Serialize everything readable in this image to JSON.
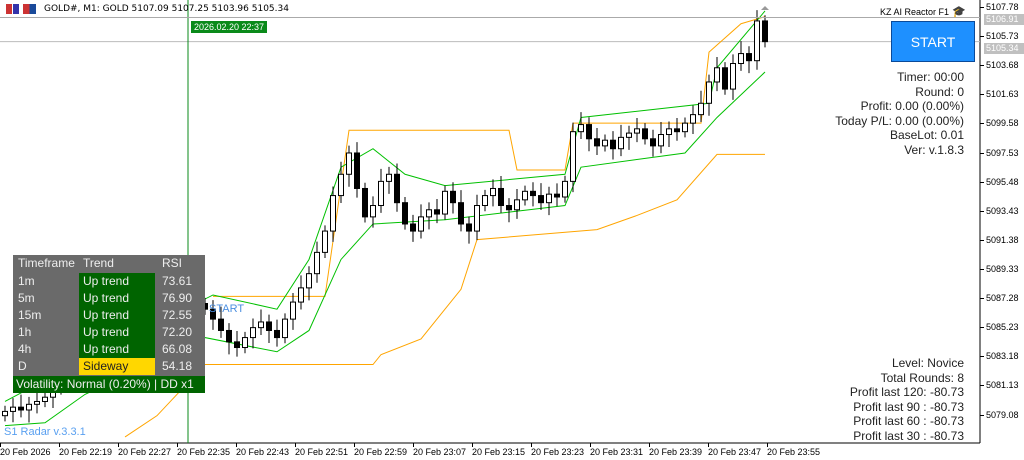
{
  "header": {
    "symbol_info": "GOLD#, M1:  GOLD  5107.09 5107.25 5103.96 5105.34"
  },
  "ea": {
    "name": "KZ AI Reactor F1",
    "icon": "graduation-cap-icon",
    "start_label": "START",
    "stats": [
      "Timer: 00:00",
      "Round: 0",
      "Profit: 0.00 (0.00%)",
      "Today P/L: 0.00 (0.00%)",
      "BaseLot: 0.01",
      "Ver: v.1.8.3"
    ],
    "summary": [
      "Level: Novice",
      "Total Rounds: 8",
      "Profit last 120: -80.73",
      "Profit last 90 : -80.73",
      "Profit last 60 : -80.73",
      "Profit last 30 : -80.73"
    ]
  },
  "radar": {
    "headers": [
      "Timeframe",
      "Trend",
      "RSI"
    ],
    "rows": [
      {
        "tf": "1m",
        "trend": "Up trend",
        "rsi": "73.61",
        "color": "#006400"
      },
      {
        "tf": "5m",
        "trend": "Up trend",
        "rsi": "76.90",
        "color": "#006400"
      },
      {
        "tf": "15m",
        "trend": "Up trend",
        "rsi": "72.55",
        "color": "#006400"
      },
      {
        "tf": "1h",
        "trend": "Up trend",
        "rsi": "72.20",
        "color": "#006400"
      },
      {
        "tf": "4h",
        "trend": "Up trend",
        "rsi": "66.08",
        "color": "#006400"
      },
      {
        "tf": "D",
        "trend": "Sideway",
        "rsi": "54.18",
        "color": "#ffd700"
      }
    ],
    "footer": "Volatility: Normal (0.20%) | DD x1",
    "ghost_label": "START",
    "version": "S1 Radar v.3.3.1"
  },
  "price_axis": {
    "labels": [
      "5107.78",
      "5105.73",
      "5103.68",
      "5101.63",
      "5099.58",
      "5097.53",
      "5095.48",
      "5093.43",
      "5091.38",
      "5089.33",
      "5087.28",
      "5085.23",
      "5083.18",
      "5081.13",
      "5079.08"
    ],
    "ask": "5106.91",
    "bid": "5105.34"
  },
  "time_axis": {
    "labels": [
      "20 Feb 2026",
      "20 Feb 22:19",
      "20 Feb 22:27",
      "20 Feb 22:35",
      "20 Feb 22:43",
      "20 Feb 22:51",
      "20 Feb 22:59",
      "20 Feb 23:07",
      "20 Feb 23:15",
      "20 Feb 23:23",
      "20 Feb 23:31",
      "20 Feb 23:39",
      "20 Feb 23:47",
      "20 Feb 23:55"
    ],
    "cursor_time": "2026.02.20 22:37"
  },
  "chart_data": {
    "type": "candlestick",
    "colors": {
      "up": "#ffffff",
      "down": "#000000",
      "upper_channel": "#ffa500",
      "lower_channel": "#ffa500",
      "green_band": "#00c000",
      "cursor": "#0a8a1a"
    },
    "closes": [
      5079.3,
      5079.6,
      5079.4,
      5079.8,
      5080.0,
      5080.3,
      5081.0,
      5081.5,
      5082.0,
      5082.5,
      5083.0,
      5083.5,
      5084.0,
      5084.5,
      5085,
      5085.5,
      5086,
      5086.2,
      5086.5,
      5086.8,
      5087,
      5086.5,
      5086.8,
      5087.1,
      5086.9,
      5086.5,
      5085.8,
      5085.0,
      5084.2,
      5083.8,
      5084.5,
      5085.2,
      5085.6,
      5085.0,
      5084.5,
      5085.8,
      5087.0,
      5088.0,
      5089.0,
      5090.5,
      5092.0,
      5094.5,
      5096.0,
      5097.5,
      5095.0,
      5093.0,
      5093.8,
      5095.5,
      5096.0,
      5094.0,
      5092.5,
      5092.0,
      5093.0,
      5093.5,
      5093.2,
      5094.8,
      5094.0,
      5092.5,
      5092.0,
      5093.8,
      5094.5,
      5095.0,
      5093.8,
      5093.5,
      5094.2,
      5094.8,
      5094.5,
      5094.0,
      5094.6,
      5094.4,
      5095.5,
      5099.0,
      5099.5,
      5098.5,
      5098.0,
      5098.4,
      5097.8,
      5098.6,
      5098.9,
      5099.2,
      5098.5,
      5098.0,
      5098.8,
      5099.2,
      5099.0,
      5099.6,
      5100.2,
      5101.0,
      5102.5,
      5103.5,
      5102.0,
      5103.8,
      5104.5,
      5104.0,
      5106.8,
      5105.34
    ],
    "upper_channel": [
      [
        26,
        5087.4
      ],
      [
        40,
        5087.4
      ],
      [
        43,
        5099.1
      ],
      [
        63,
        5099.1
      ],
      [
        64,
        5096.3
      ],
      [
        70,
        5096.3
      ],
      [
        71,
        5099.6
      ],
      [
        87,
        5099.6
      ],
      [
        88,
        5104.6
      ],
      [
        92,
        5106.6
      ],
      [
        95,
        5107.1
      ]
    ],
    "lower_channel": [
      [
        15,
        5077.5
      ],
      [
        19,
        5079.0
      ],
      [
        25,
        5082.6
      ],
      [
        46,
        5082.6
      ],
      [
        47,
        5083.3
      ],
      [
        52,
        5084.4
      ],
      [
        54,
        5085.8
      ],
      [
        57,
        5087.9
      ],
      [
        59,
        5091.4
      ],
      [
        74,
        5092.1
      ],
      [
        79,
        5093.1
      ],
      [
        84,
        5094.2
      ],
      [
        89,
        5097.4
      ],
      [
        95,
        5097.4
      ]
    ],
    "band_upper": [
      [
        0,
        5080.0
      ],
      [
        6,
        5081.8
      ],
      [
        26,
        5087.5
      ],
      [
        34,
        5086.5
      ],
      [
        38,
        5090
      ],
      [
        42,
        5096.5
      ],
      [
        46,
        5097.8
      ],
      [
        50,
        5096.0
      ],
      [
        55,
        5095.2
      ],
      [
        70,
        5096.0
      ],
      [
        72,
        5100
      ],
      [
        88,
        5101
      ],
      [
        89,
        5103.5
      ],
      [
        95,
        5107.5
      ]
    ],
    "band_lower": [
      [
        0,
        5078.3
      ],
      [
        5,
        5078.5
      ],
      [
        10,
        5080.5
      ],
      [
        25,
        5084.5
      ],
      [
        34,
        5083.5
      ],
      [
        38,
        5085
      ],
      [
        42,
        5090
      ],
      [
        46,
        5092.5
      ],
      [
        55,
        5092.8
      ],
      [
        70,
        5093.8
      ],
      [
        72,
        5096.5
      ],
      [
        85,
        5097.5
      ],
      [
        89,
        5100
      ],
      [
        95,
        5103.2
      ]
    ],
    "ylim": [
      5077.0,
      5108.3
    ]
  }
}
